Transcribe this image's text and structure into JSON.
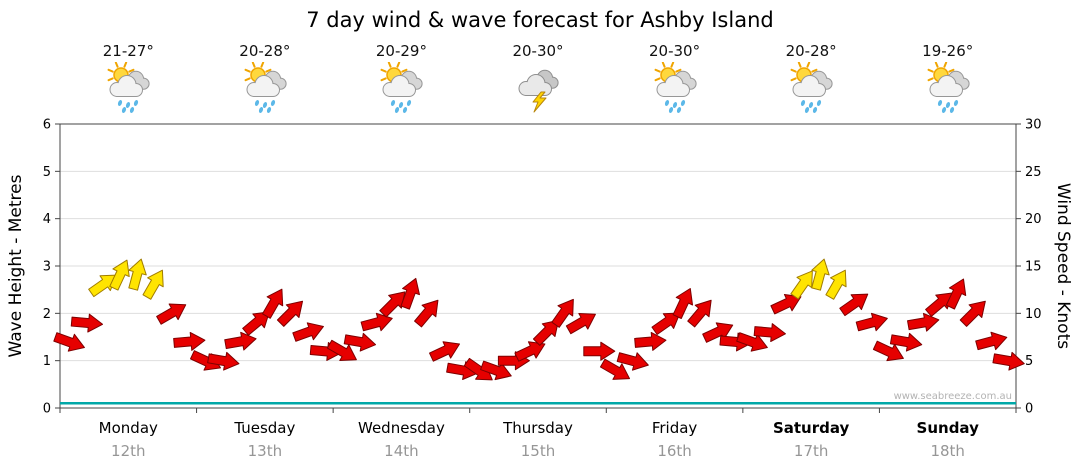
{
  "title": "7 day wind & wave forecast for Ashby Island",
  "watermark": "www.seabreeze.com.au",
  "axes": {
    "left_label": "Wave Height - Metres",
    "right_label": "Wind Speed - Knots"
  },
  "days": [
    {
      "name": "Monday",
      "date": "12th",
      "temp": "21-27°",
      "icon": "sun-cloud-showers",
      "bold": false
    },
    {
      "name": "Tuesday",
      "date": "13th",
      "temp": "20-28°",
      "icon": "sun-cloud-showers",
      "bold": false
    },
    {
      "name": "Wednesday",
      "date": "14th",
      "temp": "20-29°",
      "icon": "sun-cloud-showers",
      "bold": false
    },
    {
      "name": "Thursday",
      "date": "15th",
      "temp": "20-30°",
      "icon": "thunderstorm",
      "bold": false
    },
    {
      "name": "Friday",
      "date": "16th",
      "temp": "20-30°",
      "icon": "sun-cloud-showers",
      "bold": false
    },
    {
      "name": "Saturday",
      "date": "17th",
      "temp": "20-28°",
      "icon": "sun-cloud-showers",
      "bold": true
    },
    {
      "name": "Sunday",
      "date": "18th",
      "temp": "19-26°",
      "icon": "sun-cloud-showers",
      "bold": true
    }
  ],
  "chart_data": {
    "type": "line",
    "subtype": "wind-arrow-series-plus-wave-line",
    "title": "7 day wind & wave forecast for Ashby Island",
    "left_axis": {
      "label": "Wave Height - Metres",
      "range": [
        0,
        6
      ],
      "ticks": [
        0,
        1,
        2,
        3,
        4,
        5,
        6
      ]
    },
    "right_axis": {
      "label": "Wind Speed - Knots",
      "range": [
        0,
        30
      ],
      "ticks": [
        0,
        5,
        10,
        15,
        20,
        25,
        30
      ]
    },
    "categories": [
      "Monday 12th",
      "Tuesday 13th",
      "Wednesday 14th",
      "Thursday 15th",
      "Friday 16th",
      "Saturday 17th",
      "Sunday 18th"
    ],
    "points_per_day": 8,
    "wind_speed_knots": [
      7,
      9,
      13,
      14,
      14,
      13,
      10,
      7,
      5,
      5,
      7,
      9,
      11,
      10,
      8,
      6,
      6,
      7,
      9,
      11,
      12,
      10,
      6,
      4,
      4,
      4,
      5,
      6,
      8,
      10,
      9,
      6,
      4,
      5,
      7,
      9,
      11,
      10,
      8,
      7,
      7,
      8,
      11,
      13,
      14,
      13,
      11,
      9,
      6,
      7,
      9,
      11,
      12,
      10,
      7,
      5
    ],
    "wind_dir_deg": [
      20,
      5,
      -35,
      -65,
      -75,
      -60,
      -30,
      -5,
      25,
      10,
      -10,
      -40,
      -60,
      -45,
      -20,
      5,
      30,
      10,
      -15,
      -45,
      -70,
      -50,
      -25,
      10,
      35,
      20,
      0,
      -25,
      -45,
      -55,
      -30,
      0,
      30,
      15,
      -5,
      -35,
      -65,
      -50,
      -25,
      5,
      20,
      5,
      -25,
      -55,
      -75,
      -60,
      -35,
      -15,
      25,
      10,
      -10,
      -40,
      -65,
      -45,
      -15,
      10
    ],
    "wave_height_m_constant": 0.1,
    "arrow_colors": {
      "light_wind": "#e60000",
      "moderate_wind": "#ffe400",
      "moderate_threshold_knots": 12.5
    },
    "wave_color": "#00a8a8",
    "grid": "horizontal-light",
    "legend": "none"
  }
}
